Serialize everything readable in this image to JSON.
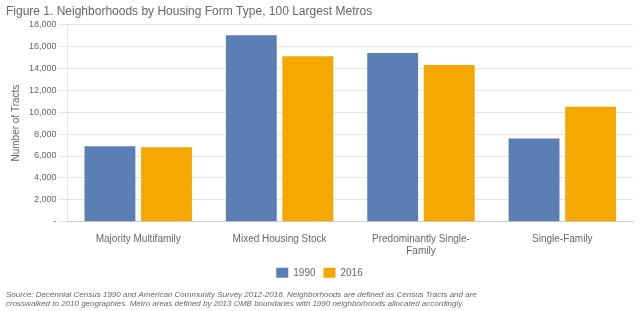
{
  "chart_data": {
    "type": "bar",
    "title": "Figure 1. Neighborhoods by Housing Form Type, 100 Largest Metros",
    "ylabel": "Number of Tracts",
    "categories": [
      "Majority Multifamily",
      "Mixed Housing Stock",
      "Predominantly Single-\nFamily",
      "Single-Family"
    ],
    "series": [
      {
        "name": "1990",
        "color": "#5b7fb5",
        "values": [
          6900,
          17000,
          15400,
          7600
        ]
      },
      {
        "name": "2016",
        "color": "#f5a800",
        "values": [
          6800,
          15100,
          14300,
          10500
        ]
      }
    ],
    "ylim": [
      0,
      18000
    ],
    "yticks": [
      {
        "value": 0,
        "label": "-"
      },
      {
        "value": 2000,
        "label": "2,000"
      },
      {
        "value": 4000,
        "label": "4,000"
      },
      {
        "value": 6000,
        "label": "6,000"
      },
      {
        "value": 8000,
        "label": "8,000"
      },
      {
        "value": 10000,
        "label": "10,000"
      },
      {
        "value": 12000,
        "label": "12,000"
      },
      {
        "value": 14000,
        "label": "14,000"
      },
      {
        "value": 16000,
        "label": "16,000"
      },
      {
        "value": 18000,
        "label": "18,000"
      }
    ],
    "grid": true,
    "legend": "bottom",
    "annotations": [
      "Source: Decennial Census 1990 and American Community Survey 2012-2016. Neighborhoods are defined as Census Tracts and are\ncrosswalked to 2010 geographies. Metro areas defined by 2013 OMB boundaries with 1990 neighborhoods allocated accordingly."
    ]
  }
}
